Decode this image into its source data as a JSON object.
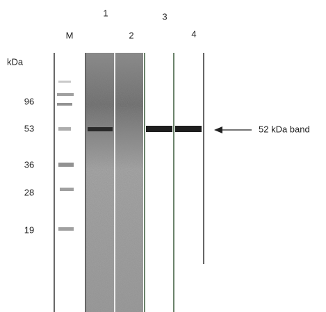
{
  "lanes": {
    "labels": [
      "M",
      "1",
      "2",
      "3",
      "4"
    ]
  },
  "markers": {
    "unit": "kDa",
    "labels": [
      "96",
      "53",
      "36",
      "28",
      "19"
    ]
  },
  "annotation": {
    "text": "52 kDa band"
  }
}
